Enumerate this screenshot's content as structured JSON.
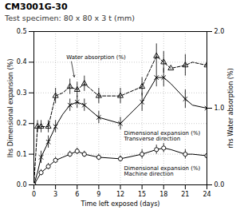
{
  "chart_data": {
    "type": "line",
    "title": "CM3001G-30",
    "subtitle": "Test specimen: 80 x 80 x 3 t (mm)",
    "xlabel": "Time left exposed (days)",
    "ylabel": "lhs Dimensional expansion (%)",
    "y2label": "rhs Water absorption (%)",
    "xlim": [
      0,
      24
    ],
    "xticks": [
      0,
      3,
      6,
      9,
      12,
      15,
      18,
      21,
      24
    ],
    "ylim": [
      0,
      0.5
    ],
    "yticks": [
      {
        "value": 0,
        "label": "0.0"
      },
      0.1,
      0.2,
      0.3,
      0.4,
      0.5
    ],
    "y2lim": [
      0,
      2.0
    ],
    "y2ticks": [
      {
        "value": 0,
        "label": "0.0"
      },
      {
        "value": 1.0,
        "label": "1.0"
      },
      {
        "value": 2.0,
        "label": "2.0"
      }
    ],
    "grid": true,
    "color": "black",
    "annotations": [
      "Water absorption (%)",
      "Dimensional expansion (%)\nTransverse direction",
      "Dimensional expansion (%)\nMachine direction"
    ],
    "series": [
      {
        "axis": "y2",
        "line_style": "dashed",
        "marker": "triangle",
        "x": [
          0,
          0.5,
          1,
          2,
          3,
          4,
          5,
          6,
          7,
          9,
          12,
          15,
          17,
          18,
          19,
          21,
          22,
          24
        ],
        "values": [
          0.0,
          0.76,
          0.76,
          0.76,
          1.16,
          1.2,
          1.28,
          1.24,
          1.32,
          1.16,
          1.16,
          1.28,
          1.68,
          1.6,
          1.52,
          1.56,
          1.6,
          1.56
        ],
        "marker_x": [
          0,
          0.5,
          1,
          2,
          3,
          5,
          6,
          7,
          9,
          12,
          15,
          17,
          18,
          19,
          21,
          24
        ],
        "marker_values": [
          0.0,
          0.76,
          0.76,
          0.76,
          1.16,
          1.28,
          1.24,
          1.32,
          1.16,
          1.16,
          1.28,
          1.68,
          1.6,
          1.52,
          1.56,
          1.56
        ],
        "error_x": [
          0.5,
          1,
          2,
          3,
          5,
          6,
          7,
          9,
          12,
          15,
          17,
          18,
          21,
          24
        ],
        "error_lo": [
          0.08,
          0.08,
          0.08,
          0.1,
          0.1,
          0.1,
          0.1,
          0.1,
          0.1,
          0.12,
          0.16,
          0.14,
          0.14,
          0.14
        ],
        "error_hi": [
          0.08,
          0.08,
          0.08,
          0.1,
          0.1,
          0.1,
          0.1,
          0.1,
          0.1,
          0.12,
          0.16,
          0.14,
          0.14,
          0.14
        ]
      },
      {
        "axis": "y",
        "line_style": "solid",
        "marker": "x",
        "x": [
          0,
          0.5,
          1,
          2,
          3,
          4,
          5,
          6,
          7,
          9,
          12,
          15,
          17,
          18,
          19,
          21,
          22,
          24
        ],
        "values": [
          0.0,
          0.04,
          0.09,
          0.14,
          0.19,
          0.23,
          0.26,
          0.27,
          0.26,
          0.22,
          0.2,
          0.27,
          0.35,
          0.35,
          0.33,
          0.28,
          0.26,
          0.25
        ],
        "marker_x": [
          0,
          1,
          2,
          3,
          5,
          6,
          7,
          9,
          12,
          15,
          17,
          18,
          21,
          24
        ],
        "marker_values": [
          0.0,
          0.09,
          0.14,
          0.19,
          0.26,
          0.27,
          0.26,
          0.22,
          0.2,
          0.27,
          0.35,
          0.35,
          0.28,
          0.25
        ],
        "error_x": [
          1,
          2,
          3,
          5,
          6,
          7,
          9,
          12,
          15,
          17,
          18,
          21,
          24
        ],
        "error_lo": [
          0.02,
          0.02,
          0.02,
          0.02,
          0.02,
          0.02,
          0.02,
          0.02,
          0.03,
          0.03,
          0.03,
          0.03,
          0.02
        ],
        "error_hi": [
          0.02,
          0.02,
          0.02,
          0.02,
          0.02,
          0.02,
          0.02,
          0.02,
          0.03,
          0.03,
          0.03,
          0.03,
          0.02
        ]
      },
      {
        "axis": "y",
        "line_style": "solid",
        "marker": "circle",
        "x": [
          0,
          0.5,
          1,
          2,
          3,
          4,
          5,
          6,
          7,
          9,
          12,
          15,
          17,
          18,
          19,
          21,
          22,
          24
        ],
        "values": [
          0.0,
          0.02,
          0.04,
          0.06,
          0.08,
          0.09,
          0.1,
          0.11,
          0.1,
          0.09,
          0.085,
          0.1,
          0.115,
          0.12,
          0.115,
          0.1,
          0.1,
          0.095
        ],
        "marker_x": [
          0,
          1,
          2,
          3,
          5,
          6,
          7,
          9,
          12,
          15,
          17,
          18,
          21,
          24
        ],
        "marker_values": [
          0.0,
          0.04,
          0.06,
          0.08,
          0.1,
          0.11,
          0.1,
          0.09,
          0.085,
          0.1,
          0.115,
          0.12,
          0.1,
          0.095
        ],
        "error_x": [
          1,
          2,
          3,
          5,
          6,
          7,
          9,
          12,
          15,
          17,
          18,
          21,
          24
        ],
        "error_lo": [
          0.01,
          0.01,
          0.01,
          0.01,
          0.01,
          0.01,
          0.01,
          0.01,
          0.015,
          0.015,
          0.015,
          0.015,
          0.01
        ],
        "error_hi": [
          0.01,
          0.01,
          0.01,
          0.01,
          0.01,
          0.01,
          0.01,
          0.01,
          0.015,
          0.015,
          0.015,
          0.015,
          0.01
        ]
      }
    ]
  }
}
